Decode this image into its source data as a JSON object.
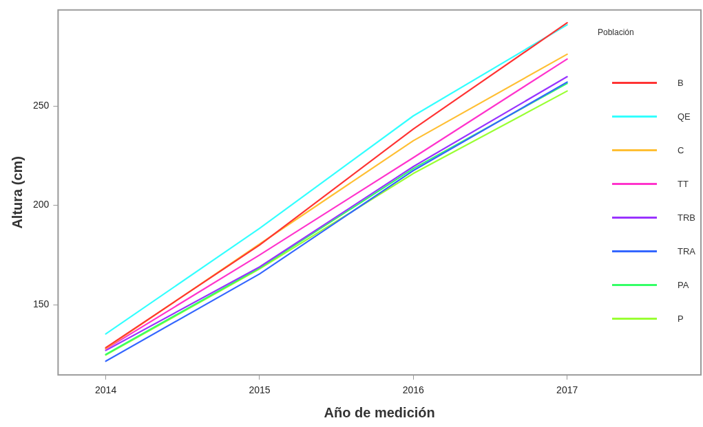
{
  "chart_data": {
    "type": "line",
    "xlabel": "Año de medición",
    "ylabel": "Altura (cm)",
    "legend_title": "Población",
    "x": [
      2014,
      2015,
      2016,
      2017
    ],
    "xlim": [
      2013.69,
      2017.87
    ],
    "xticks": [
      2014,
      2015,
      2016,
      2017
    ],
    "ylim": [
      114.7,
      298.3
    ],
    "yticks": [
      150,
      200,
      250
    ],
    "grid": false,
    "legend": "right",
    "marker": "none",
    "line_style": "solid",
    "series": [
      {
        "name": "B",
        "color": "#ff3333",
        "values": [
          128.4,
          180,
          238.4,
          291.8
        ]
      },
      {
        "name": "QE",
        "color": "#33ffff",
        "values": [
          135.3,
          188.4,
          245,
          290.8
        ]
      },
      {
        "name": "C",
        "color": "#ffbf33",
        "values": [
          128,
          180.5,
          232.5,
          276
        ]
      },
      {
        "name": "TT",
        "color": "#ff33cc",
        "values": [
          127.7,
          175,
          224,
          273.6
        ]
      },
      {
        "name": "TRB",
        "color": "#9933ff",
        "values": [
          127,
          169,
          219.5,
          264.7
        ]
      },
      {
        "name": "TRA",
        "color": "#3366ff",
        "values": [
          121.6,
          165.5,
          217.5,
          262
        ]
      },
      {
        "name": "PA",
        "color": "#33ff66",
        "values": [
          125,
          168.5,
          218.5,
          261.3
        ]
      },
      {
        "name": "P",
        "color": "#99ff33",
        "values": [
          124.7,
          168,
          216,
          257.5
        ]
      }
    ]
  }
}
